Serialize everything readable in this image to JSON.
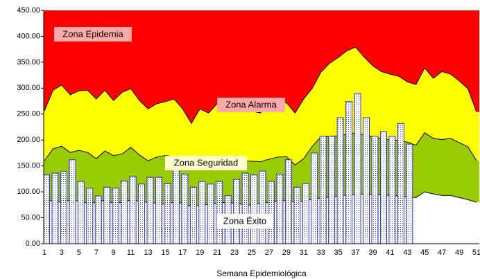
{
  "chart_data": {
    "type": "epidemic_channel",
    "x_label": "Semana Epidemiológica",
    "categories": [
      "1",
      null,
      "3",
      null,
      "5",
      null,
      "7",
      null,
      "9",
      null,
      "11",
      null,
      "13",
      null,
      "15",
      null,
      "17",
      null,
      "19",
      null,
      "21",
      null,
      "23",
      null,
      "25",
      null,
      "27",
      null,
      "29",
      null,
      "31",
      null,
      "33",
      null,
      "35",
      null,
      "37",
      null,
      "39",
      null,
      "41",
      null,
      "43",
      null,
      "45",
      null,
      "47",
      null,
      "49",
      null,
      "51"
    ],
    "ylim": [
      0,
      450
    ],
    "yticks": [
      {
        "value": 0,
        "label": "0.00"
      },
      {
        "value": 50,
        "label": "50.00"
      },
      {
        "value": 100,
        "label": "100.00"
      },
      {
        "value": 150,
        "label": "150.00"
      },
      {
        "value": 200,
        "label": "200.00"
      },
      {
        "value": 250,
        "label": "250.00"
      },
      {
        "value": 300,
        "label": "300.00"
      },
      {
        "value": 350,
        "label": "350.00"
      },
      {
        "value": 400,
        "label": "400.00"
      },
      {
        "value": 450,
        "label": "450.00"
      }
    ],
    "epidemic_zone": {
      "name": "Zona Epidemia",
      "color": "#ff0000"
    },
    "series": [
      {
        "name": "Zona Éxito",
        "color": "#ffffff",
        "values": [
          85,
          82,
          80,
          84,
          82,
          78,
          80,
          84,
          78,
          80,
          84,
          82,
          80,
          78,
          76,
          80,
          78,
          72,
          74,
          76,
          78,
          80,
          78,
          76,
          74,
          78,
          80,
          82,
          84,
          80,
          82,
          86,
          88,
          90,
          92,
          94,
          95,
          96,
          95,
          94,
          93,
          92,
          90,
          89,
          100,
          96,
          93,
          93,
          89,
          85,
          80
        ]
      },
      {
        "name": "Zona Seguridad",
        "color": "#99cc00",
        "values": [
          160,
          183,
          188,
          176,
          180,
          176,
          164,
          179,
          170,
          173,
          186,
          171,
          160,
          167,
          170,
          168,
          163,
          154,
          163,
          159,
          163,
          166,
          163,
          160,
          159,
          158,
          163,
          167,
          168,
          152,
          164,
          188,
          206,
          207,
          208,
          211,
          214,
          210,
          206,
          203,
          200,
          199,
          196,
          190,
          214,
          203,
          201,
          203,
          195,
          187,
          160
        ]
      },
      {
        "name": "Zona Alarma",
        "color": "#ffff00",
        "values": [
          256,
          296,
          306,
          287,
          295,
          296,
          279,
          296,
          276,
          292,
          299,
          276,
          260,
          270,
          274,
          279,
          260,
          232,
          260,
          252,
          270,
          272,
          270,
          266,
          256,
          252,
          272,
          272,
          272,
          252,
          279,
          300,
          331,
          348,
          359,
          372,
          379,
          360,
          343,
          332,
          327,
          323,
          312,
          307,
          339,
          319,
          332,
          327,
          314,
          299,
          254
        ]
      }
    ],
    "bar_series": {
      "color": "#2b2bd9",
      "values": [
        133,
        136,
        139,
        162,
        120,
        107,
        92,
        109,
        107,
        121,
        130,
        115,
        128,
        128,
        116,
        143,
        134,
        109,
        120,
        115,
        120,
        93,
        124,
        136,
        133,
        140,
        120,
        134,
        162,
        109,
        116,
        175,
        207,
        207,
        243,
        274,
        290,
        243,
        207,
        216,
        207,
        232,
        192,
        null,
        null,
        null,
        null,
        null,
        null,
        null,
        null
      ]
    }
  }
}
